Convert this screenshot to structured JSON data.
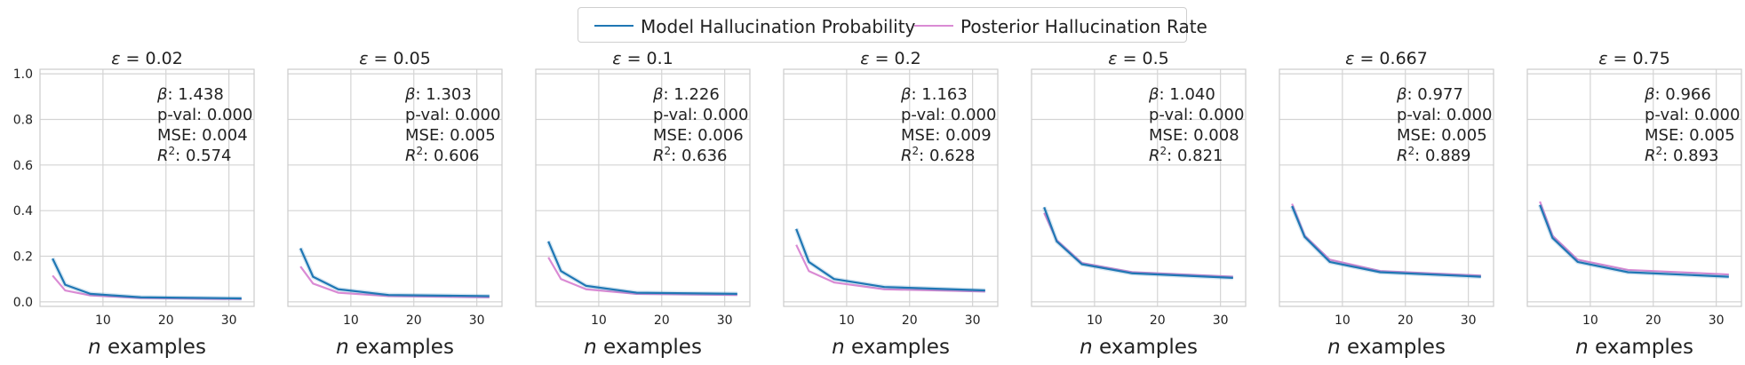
{
  "legend": {
    "series_1": "Model Hallucination Probability",
    "series_2": "Posterior Hallucination Rate"
  },
  "colors": {
    "series_1": "#1f77b4",
    "series_2": "#da8bd4",
    "grid": "#d4d4d4",
    "spine": "#cccccc",
    "text": "#222222"
  },
  "chart_data": [
    {
      "type": "line",
      "title": "ε = 0.02",
      "epsilon": "0.02",
      "xlabel": "n examples",
      "xlim": [
        0,
        34
      ],
      "ylim": [
        -0.02,
        1.02
      ],
      "xticks": [
        10,
        20,
        30
      ],
      "yticks": [
        0.0,
        0.2,
        0.4,
        0.6,
        0.8,
        1.0
      ],
      "x": [
        2,
        4,
        8,
        16,
        32
      ],
      "series": [
        {
          "name": "Model Hallucination Probability",
          "values": [
            0.19,
            0.075,
            0.035,
            0.02,
            0.015
          ]
        },
        {
          "name": "Posterior Hallucination Rate",
          "values": [
            0.115,
            0.05,
            0.028,
            0.017,
            0.012
          ]
        }
      ],
      "annotations": [
        "β: 1.438",
        "p-val: 0.000",
        "MSE: 0.004",
        "R²: 0.574"
      ]
    },
    {
      "type": "line",
      "title": "ε = 0.05",
      "epsilon": "0.05",
      "xlabel": "n examples",
      "xlim": [
        0,
        34
      ],
      "ylim": [
        -0.02,
        1.02
      ],
      "xticks": [
        10,
        20,
        30
      ],
      "yticks": [
        0.0,
        0.2,
        0.4,
        0.6,
        0.8,
        1.0
      ],
      "x": [
        2,
        4,
        8,
        16,
        32
      ],
      "series": [
        {
          "name": "Model Hallucination Probability",
          "values": [
            0.235,
            0.11,
            0.055,
            0.03,
            0.025
          ]
        },
        {
          "name": "Posterior Hallucination Rate",
          "values": [
            0.155,
            0.08,
            0.04,
            0.025,
            0.02
          ]
        }
      ],
      "annotations": [
        "β: 1.303",
        "p-val: 0.000",
        "MSE: 0.005",
        "R²: 0.606"
      ]
    },
    {
      "type": "line",
      "title": "ε = 0.1",
      "epsilon": "0.1",
      "xlabel": "n examples",
      "xlim": [
        0,
        34
      ],
      "ylim": [
        -0.02,
        1.02
      ],
      "xticks": [
        10,
        20,
        30
      ],
      "yticks": [
        0.0,
        0.2,
        0.4,
        0.6,
        0.8,
        1.0
      ],
      "x": [
        2,
        4,
        8,
        16,
        32
      ],
      "series": [
        {
          "name": "Model Hallucination Probability",
          "values": [
            0.265,
            0.135,
            0.07,
            0.04,
            0.035
          ]
        },
        {
          "name": "Posterior Hallucination Rate",
          "values": [
            0.195,
            0.1,
            0.055,
            0.035,
            0.03
          ]
        }
      ],
      "annotations": [
        "β: 1.226",
        "p-val: 0.000",
        "MSE: 0.006",
        "R²: 0.636"
      ]
    },
    {
      "type": "line",
      "title": "ε = 0.2",
      "epsilon": "0.2",
      "xlabel": "n examples",
      "xlim": [
        0,
        34
      ],
      "ylim": [
        -0.02,
        1.02
      ],
      "xticks": [
        10,
        20,
        30
      ],
      "yticks": [
        0.0,
        0.2,
        0.4,
        0.6,
        0.8,
        1.0
      ],
      "x": [
        2,
        4,
        8,
        16,
        32
      ],
      "series": [
        {
          "name": "Model Hallucination Probability",
          "values": [
            0.32,
            0.175,
            0.1,
            0.065,
            0.05
          ]
        },
        {
          "name": "Posterior Hallucination Rate",
          "values": [
            0.25,
            0.135,
            0.085,
            0.055,
            0.045
          ]
        }
      ],
      "annotations": [
        "β: 1.163",
        "p-val: 0.000",
        "MSE: 0.009",
        "R²: 0.628"
      ]
    },
    {
      "type": "line",
      "title": "ε = 0.5",
      "epsilon": "0.5",
      "xlabel": "n examples",
      "xlim": [
        0,
        34
      ],
      "ylim": [
        -0.02,
        1.02
      ],
      "xticks": [
        10,
        20,
        30
      ],
      "yticks": [
        0.0,
        0.2,
        0.4,
        0.6,
        0.8,
        1.0
      ],
      "x": [
        2,
        4,
        8,
        16,
        32
      ],
      "series": [
        {
          "name": "Model Hallucination Probability",
          "values": [
            0.415,
            0.265,
            0.165,
            0.125,
            0.105
          ]
        },
        {
          "name": "Posterior Hallucination Rate",
          "values": [
            0.39,
            0.27,
            0.17,
            0.13,
            0.11
          ]
        }
      ],
      "annotations": [
        "β: 1.040",
        "p-val: 0.000",
        "MSE: 0.008",
        "R²: 0.821"
      ]
    },
    {
      "type": "line",
      "title": "ε = 0.667",
      "epsilon": "0.667",
      "xlabel": "n examples",
      "xlim": [
        0,
        34
      ],
      "ylim": [
        -0.02,
        1.02
      ],
      "xticks": [
        10,
        20,
        30
      ],
      "yticks": [
        0.0,
        0.2,
        0.4,
        0.6,
        0.8,
        1.0
      ],
      "x": [
        2,
        4,
        8,
        16,
        32
      ],
      "series": [
        {
          "name": "Model Hallucination Probability",
          "values": [
            0.42,
            0.285,
            0.175,
            0.13,
            0.11
          ]
        },
        {
          "name": "Posterior Hallucination Rate",
          "values": [
            0.43,
            0.29,
            0.185,
            0.135,
            0.115
          ]
        }
      ],
      "annotations": [
        "β: 0.977",
        "p-val: 0.000",
        "MSE: 0.005",
        "R²: 0.889"
      ]
    },
    {
      "type": "line",
      "title": "ε = 0.75",
      "epsilon": "0.75",
      "xlabel": "n examples",
      "xlim": [
        0,
        34
      ],
      "ylim": [
        -0.02,
        1.02
      ],
      "xticks": [
        10,
        20,
        30
      ],
      "yticks": [
        0.0,
        0.2,
        0.4,
        0.6,
        0.8,
        1.0
      ],
      "x": [
        2,
        4,
        8,
        16,
        32
      ],
      "series": [
        {
          "name": "Model Hallucination Probability",
          "values": [
            0.425,
            0.28,
            0.175,
            0.13,
            0.11
          ]
        },
        {
          "name": "Posterior Hallucination Rate",
          "values": [
            0.44,
            0.29,
            0.185,
            0.14,
            0.12
          ]
        }
      ],
      "annotations": [
        "β: 0.966",
        "p-val: 0.000",
        "MSE: 0.005",
        "R²: 0.893"
      ]
    }
  ]
}
